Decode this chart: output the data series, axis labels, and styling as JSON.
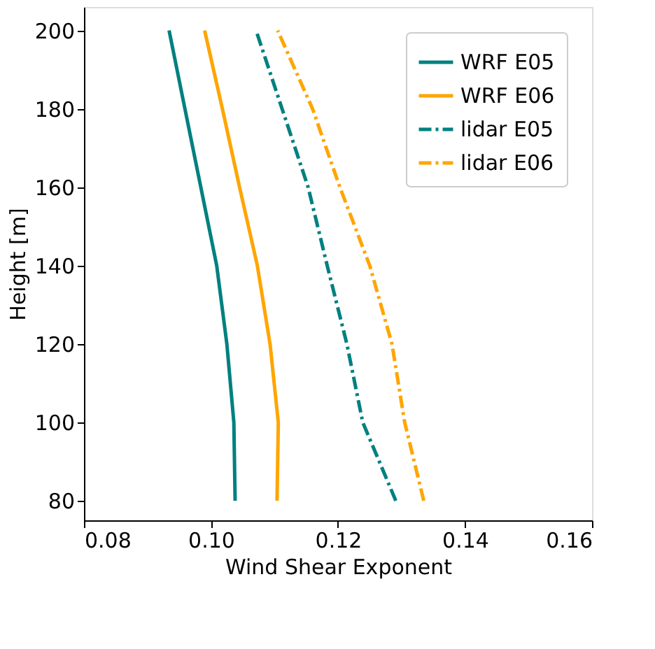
{
  "chart_data": {
    "type": "line",
    "xlabel": "Wind Shear Exponent",
    "ylabel": "Height [m]",
    "series": [
      {
        "name": "WRF E05",
        "color": "#008080",
        "line_style": "solid",
        "x": [
          0.1038,
          0.1036,
          0.1025,
          0.1009,
          0.0984,
          0.0959,
          0.0934
        ],
        "values": [
          80,
          100,
          120,
          140,
          160,
          180,
          200
        ]
      },
      {
        "name": "WRF E06",
        "color": "#ffa500",
        "line_style": "solid",
        "x": [
          0.1104,
          0.1106,
          0.1093,
          0.1073,
          0.1045,
          0.1018,
          0.099
        ],
        "values": [
          80,
          100,
          120,
          140,
          160,
          180,
          200
        ]
      },
      {
        "name": "lidar E05",
        "color": "#008080",
        "line_style": "dashed",
        "x": [
          0.1291,
          0.1239,
          0.1214,
          0.1183,
          0.1153,
          0.1112,
          0.1071
        ],
        "values": [
          80,
          100,
          120,
          140,
          160,
          180,
          200
        ]
      },
      {
        "name": "lidar E06",
        "color": "#ffa500",
        "line_style": "dashed",
        "x": [
          0.1335,
          0.1305,
          0.1285,
          0.125,
          0.1203,
          0.116,
          0.1105
        ],
        "values": [
          80,
          100,
          120,
          140,
          160,
          180,
          200
        ]
      }
    ],
    "xlim": [
      0.08,
      0.16
    ],
    "xticks": [
      0.08,
      {
        "value": 0.1,
        "label": "0.10"
      },
      0.12,
      0.14,
      0.16
    ],
    "ylim": [
      75,
      206
    ],
    "yticks": [
      80,
      100,
      120,
      140,
      160,
      180,
      200
    ],
    "grid": false,
    "legend": "top right",
    "marker": "none"
  }
}
